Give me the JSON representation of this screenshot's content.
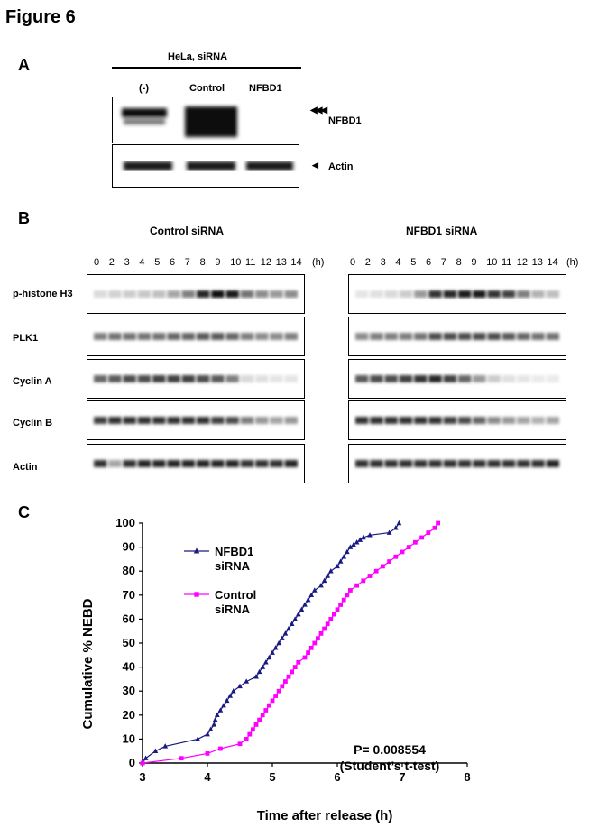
{
  "figure": {
    "title": "Figure 6"
  },
  "panel_a": {
    "letter": "A",
    "header": "HeLa, siRNA",
    "lanes": [
      "(-)",
      "Control",
      "NFBD1"
    ],
    "rows": [
      {
        "label": "NFBD1",
        "marker": "◀◀◀"
      },
      {
        "label": "Actin",
        "marker": "◀"
      }
    ]
  },
  "panel_b": {
    "letter": "B",
    "groups": [
      {
        "title": "Control siRNA"
      },
      {
        "title": "NFBD1 siRNA"
      }
    ],
    "timepoints": [
      "0",
      "2",
      "3",
      "4",
      "5",
      "6",
      "7",
      "8",
      "9",
      "10",
      "11",
      "12",
      "13",
      "14"
    ],
    "unit": "(h)",
    "rows": [
      {
        "label": "p-histone H3"
      },
      {
        "label": "PLK1"
      },
      {
        "label": "Cyclin A"
      },
      {
        "label": "Cyclin B"
      },
      {
        "label": "Actin"
      }
    ],
    "intensities": {
      "control": [
        [
          0.15,
          0.18,
          0.2,
          0.22,
          0.25,
          0.35,
          0.5,
          0.85,
          0.95,
          0.9,
          0.55,
          0.45,
          0.4,
          0.45
        ],
        [
          0.5,
          0.55,
          0.55,
          0.55,
          0.55,
          0.6,
          0.6,
          0.65,
          0.65,
          0.6,
          0.5,
          0.45,
          0.45,
          0.5
        ],
        [
          0.6,
          0.65,
          0.7,
          0.7,
          0.75,
          0.75,
          0.75,
          0.7,
          0.65,
          0.5,
          0.15,
          0.12,
          0.1,
          0.1
        ],
        [
          0.75,
          0.8,
          0.8,
          0.8,
          0.8,
          0.8,
          0.8,
          0.8,
          0.75,
          0.7,
          0.5,
          0.4,
          0.35,
          0.4
        ],
        [
          0.8,
          0.35,
          0.8,
          0.85,
          0.85,
          0.85,
          0.85,
          0.85,
          0.85,
          0.85,
          0.8,
          0.8,
          0.8,
          0.85
        ]
      ],
      "nfbd1": [
        [
          0.1,
          0.12,
          0.15,
          0.2,
          0.4,
          0.8,
          0.85,
          0.9,
          0.9,
          0.8,
          0.75,
          0.5,
          0.3,
          0.25
        ],
        [
          0.45,
          0.5,
          0.5,
          0.5,
          0.55,
          0.7,
          0.7,
          0.7,
          0.7,
          0.7,
          0.65,
          0.6,
          0.55,
          0.55
        ],
        [
          0.65,
          0.7,
          0.7,
          0.75,
          0.8,
          0.85,
          0.75,
          0.6,
          0.4,
          0.2,
          0.12,
          0.1,
          0.08,
          0.08
        ],
        [
          0.8,
          0.8,
          0.8,
          0.8,
          0.8,
          0.8,
          0.75,
          0.7,
          0.6,
          0.45,
          0.4,
          0.35,
          0.3,
          0.35
        ],
        [
          0.8,
          0.8,
          0.8,
          0.8,
          0.8,
          0.8,
          0.8,
          0.8,
          0.8,
          0.8,
          0.8,
          0.8,
          0.8,
          0.85
        ]
      ]
    }
  },
  "panel_c": {
    "letter": "C"
  },
  "chart_data": {
    "type": "line",
    "xlabel": "Time after release (h)",
    "ylabel": "Cumulative % NEBD",
    "xlim": [
      3,
      8
    ],
    "ylim": [
      0,
      100
    ],
    "xticks": [
      3,
      4,
      5,
      6,
      7,
      8
    ],
    "yticks": [
      0,
      10,
      20,
      30,
      40,
      50,
      60,
      70,
      80,
      90,
      100
    ],
    "annotation": [
      "P= 0.008554",
      "(Student’s t-test)"
    ],
    "series": [
      {
        "name": "NFBD1 siRNA",
        "color": "#1a1a80",
        "marker": "triangle",
        "x": [
          3.0,
          3.05,
          3.2,
          3.35,
          3.85,
          4.0,
          4.05,
          4.1,
          4.12,
          4.15,
          4.2,
          4.25,
          4.3,
          4.35,
          4.4,
          4.5,
          4.6,
          4.75,
          4.8,
          4.85,
          4.9,
          4.95,
          5.0,
          5.05,
          5.1,
          5.15,
          5.2,
          5.25,
          5.3,
          5.35,
          5.4,
          5.45,
          5.5,
          5.55,
          5.6,
          5.65,
          5.75,
          5.8,
          5.85,
          5.9,
          6.0,
          6.05,
          6.1,
          6.15,
          6.2,
          6.25,
          6.3,
          6.35,
          6.4,
          6.5,
          6.8,
          6.9,
          6.95
        ],
        "y": [
          0,
          2,
          5,
          7,
          10,
          12,
          14,
          16,
          18,
          20,
          22,
          24,
          26,
          28,
          30,
          32,
          34,
          36,
          38,
          40,
          42,
          44,
          46,
          48,
          50,
          52,
          54,
          56,
          58,
          60,
          62,
          64,
          66,
          68,
          70,
          72,
          74,
          76,
          78,
          80,
          82,
          84,
          86,
          88,
          90,
          91,
          92,
          93,
          94,
          95,
          96,
          98,
          100
        ]
      },
      {
        "name": "Control siRNA",
        "color": "#ff00ff",
        "marker": "square",
        "x": [
          3.0,
          3.6,
          4.0,
          4.2,
          4.5,
          4.6,
          4.65,
          4.7,
          4.75,
          4.8,
          4.85,
          4.9,
          4.95,
          5.0,
          5.05,
          5.1,
          5.15,
          5.2,
          5.25,
          5.3,
          5.35,
          5.4,
          5.5,
          5.55,
          5.6,
          5.65,
          5.7,
          5.75,
          5.8,
          5.85,
          5.9,
          5.95,
          6.0,
          6.05,
          6.1,
          6.15,
          6.2,
          6.3,
          6.4,
          6.5,
          6.6,
          6.7,
          6.8,
          6.9,
          7.0,
          7.1,
          7.2,
          7.3,
          7.4,
          7.5,
          7.55
        ],
        "y": [
          0,
          2,
          4,
          6,
          8,
          10,
          12,
          14,
          16,
          18,
          20,
          22,
          24,
          26,
          28,
          30,
          32,
          34,
          36,
          38,
          40,
          42,
          44,
          46,
          48,
          50,
          52,
          54,
          56,
          58,
          60,
          62,
          64,
          66,
          68,
          70,
          72,
          74,
          76,
          78,
          80,
          82,
          84,
          86,
          88,
          90,
          92,
          94,
          96,
          98,
          100
        ]
      }
    ]
  }
}
